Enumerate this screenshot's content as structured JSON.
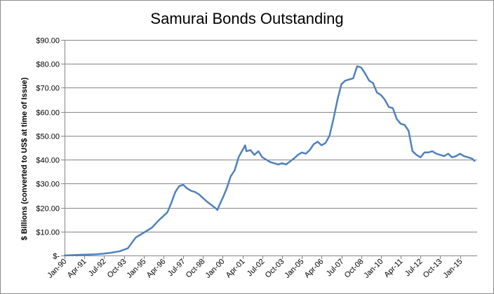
{
  "chart_data": {
    "type": "line",
    "title": "Samurai Bonds Outstanding",
    "xlabel": "",
    "ylabel": "$ Billions  (converted to US$ at time of Issue)",
    "ylim": [
      0,
      90
    ],
    "yticks": [
      0,
      10,
      20,
      30,
      40,
      50,
      60,
      70,
      80,
      90
    ],
    "ytick_labels": [
      "$-",
      "$10.00",
      "$20.00",
      "$30.00",
      "$40.00",
      "$50.00",
      "$60.00",
      "$70.00",
      "$80.00",
      "$90.00"
    ],
    "xtick_labels": [
      "Jan-90",
      "Apr-91",
      "Jul-92",
      "Oct-93",
      "Jan-95",
      "Apr-96",
      "Jul-97",
      "Oct-98",
      "Jan-00",
      "Apr-01",
      "Jul-02",
      "Oct-03",
      "Jan-05",
      "Apr-06",
      "Jul-07",
      "Oct-08",
      "Jan-10",
      "Apr-11",
      "Jul-12",
      "Oct-13",
      "Jan-15"
    ],
    "grid": true,
    "legend": "none",
    "line_color": "#4f81bd",
    "series": [
      {
        "x": [
          "Jan-90",
          "Jan-91",
          "Jan-92",
          "Jul-92",
          "Jan-93",
          "Jul-93",
          "Jan-94",
          "Jul-94",
          "Jan-95",
          "Jul-95",
          "Jan-96",
          "Jul-96",
          "Oct-96",
          "Jan-97",
          "Apr-97",
          "Jul-97",
          "Oct-97",
          "Jan-98",
          "Apr-98",
          "Jul-98",
          "Oct-98",
          "Jan-99",
          "Jul-99",
          "Sep-99",
          "Oct-99",
          "Jan-00",
          "Apr-00",
          "Jul-00",
          "Oct-00",
          "Jan-01",
          "Apr-01",
          "Jun-01",
          "Jul-01",
          "Oct-01",
          "Jan-02",
          "Apr-02",
          "Jul-02",
          "Oct-02",
          "Jan-03",
          "Apr-03",
          "Jul-03",
          "Oct-03",
          "Jan-04",
          "Jul-04",
          "Oct-04",
          "Jan-05",
          "Apr-05",
          "Jul-05",
          "Oct-05",
          "Jan-06",
          "Apr-06",
          "Jul-06",
          "Oct-06",
          "Jan-07",
          "Apr-07",
          "Jul-07",
          "Oct-07",
          "Jan-08",
          "Apr-08",
          "Jul-08",
          "Oct-08",
          "Jan-09",
          "Apr-09",
          "Jul-09",
          "Oct-09",
          "Jan-10",
          "Apr-10",
          "Jul-10",
          "Oct-10",
          "Jan-11",
          "Apr-11",
          "Jul-11",
          "Oct-11",
          "Jan-12",
          "Apr-12",
          "Jul-12",
          "Oct-12",
          "Jan-13",
          "Apr-13",
          "Jul-13",
          "Oct-13",
          "Jan-14",
          "Apr-14",
          "Jul-14",
          "Oct-14",
          "Jan-15",
          "Apr-15",
          "Jul-15",
          "Oct-15",
          "Dec-15"
        ],
        "values": [
          0,
          0.3,
          0.5,
          0.8,
          1.2,
          1.8,
          3.0,
          7.5,
          9.5,
          11.5,
          15.0,
          18.0,
          22.0,
          26.5,
          29.0,
          29.5,
          28.0,
          27.0,
          26.5,
          25.5,
          24.0,
          22.5,
          20.0,
          19.0,
          20.5,
          24.0,
          28.0,
          33.0,
          35.5,
          41.0,
          44.0,
          46.0,
          43.5,
          44.0,
          42.0,
          43.5,
          41.0,
          40.0,
          39.0,
          38.5,
          38.0,
          38.5,
          38.0,
          40.5,
          42.0,
          43.0,
          42.5,
          44.0,
          46.5,
          47.5,
          46.0,
          47.0,
          50.0,
          57.0,
          65.0,
          71.5,
          73.0,
          73.5,
          74.0,
          79.0,
          78.5,
          76.0,
          73.0,
          72.0,
          68.0,
          67.0,
          65.0,
          62.0,
          61.5,
          57.0,
          55.0,
          54.5,
          52.0,
          43.5,
          42.0,
          41.0,
          43.0,
          43.0,
          43.5,
          42.5,
          42.0,
          41.5,
          42.5,
          41.0,
          41.5,
          42.5,
          41.5,
          41.0,
          40.5,
          39.5
        ]
      }
    ]
  }
}
